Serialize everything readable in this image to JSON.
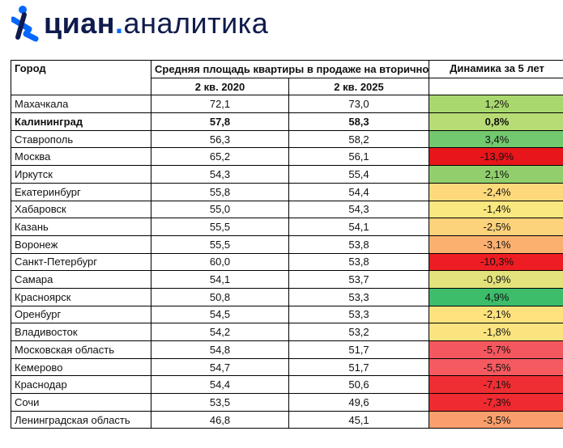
{
  "logo": {
    "brand": "циан",
    "dot": ".",
    "sub": "аналитика",
    "accent_color": "#0468ff",
    "text_color": "#0f1b4c",
    "icon": "cian-person-logo-icon"
  },
  "table": {
    "headers": {
      "city": "Город",
      "area": "Средняя площадь квартиры в продаже на вторичном рынке, кв.м.",
      "dynamics": "Динамика за 5 лет",
      "year_2020": "2 кв. 2020",
      "year_2025": "2 кв. 2025"
    },
    "rows": [
      {
        "city": "Махачкала",
        "y2020": "72,1",
        "y2025": "73,0",
        "dyn": "1,2%",
        "color": "#a9d86e"
      },
      {
        "city": "Калининград",
        "y2020": "57,8",
        "y2025": "58,3",
        "dyn": "0,8%",
        "color": "#b7dc75",
        "bold": true
      },
      {
        "city": "Ставрополь",
        "y2020": "56,3",
        "y2025": "58,2",
        "dyn": "3,4%",
        "color": "#72c86e"
      },
      {
        "city": "Москва",
        "y2020": "65,2",
        "y2025": "56,1",
        "dyn": "-13,9%",
        "color": "#e8151b"
      },
      {
        "city": "Иркутск",
        "y2020": "54,3",
        "y2025": "55,4",
        "dyn": "2,1%",
        "color": "#90cf6c"
      },
      {
        "city": "Екатеринбург",
        "y2020": "55,8",
        "y2025": "54,4",
        "dyn": "-2,4%",
        "color": "#fdd97c"
      },
      {
        "city": "Хабаровск",
        "y2020": "55,0",
        "y2025": "54,3",
        "dyn": "-1,4%",
        "color": "#f9e77f"
      },
      {
        "city": "Казань",
        "y2020": "55,5",
        "y2025": "54,1",
        "dyn": "-2,5%",
        "color": "#fcd27b"
      },
      {
        "city": "Воронеж",
        "y2020": "55,5",
        "y2025": "53,8",
        "dyn": "-3,1%",
        "color": "#fbb06f"
      },
      {
        "city": "Санкт-Петербург",
        "y2020": "60,0",
        "y2025": "53,8",
        "dyn": "-10,3%",
        "color": "#ee1d23"
      },
      {
        "city": "Самара",
        "y2020": "54,1",
        "y2025": "53,7",
        "dyn": "-0,9%",
        "color": "#e3e27c"
      },
      {
        "city": "Красноярск",
        "y2020": "50,8",
        "y2025": "53,3",
        "dyn": "4,9%",
        "color": "#3dbc6a"
      },
      {
        "city": "Оренбург",
        "y2020": "54,5",
        "y2025": "53,3",
        "dyn": "-2,1%",
        "color": "#fde27e"
      },
      {
        "city": "Владивосток",
        "y2020": "54,2",
        "y2025": "53,2",
        "dyn": "-1,8%",
        "color": "#fbe47f"
      },
      {
        "city": "Московская область",
        "y2020": "54,8",
        "y2025": "51,7",
        "dyn": "-5,7%",
        "color": "#f4585e"
      },
      {
        "city": "Кемерово",
        "y2020": "54,7",
        "y2025": "51,7",
        "dyn": "-5,5%",
        "color": "#f45a60"
      },
      {
        "city": "Краснодар",
        "y2020": "54,4",
        "y2025": "50,6",
        "dyn": "-7,1%",
        "color": "#ee2e33"
      },
      {
        "city": "Сочи",
        "y2020": "53,5",
        "y2025": "49,6",
        "dyn": "-7,3%",
        "color": "#ef2a30"
      },
      {
        "city": "Ленинградская область",
        "y2020": "46,8",
        "y2025": "45,1",
        "dyn": "-3,5%",
        "color": "#fa9f6c"
      }
    ]
  }
}
